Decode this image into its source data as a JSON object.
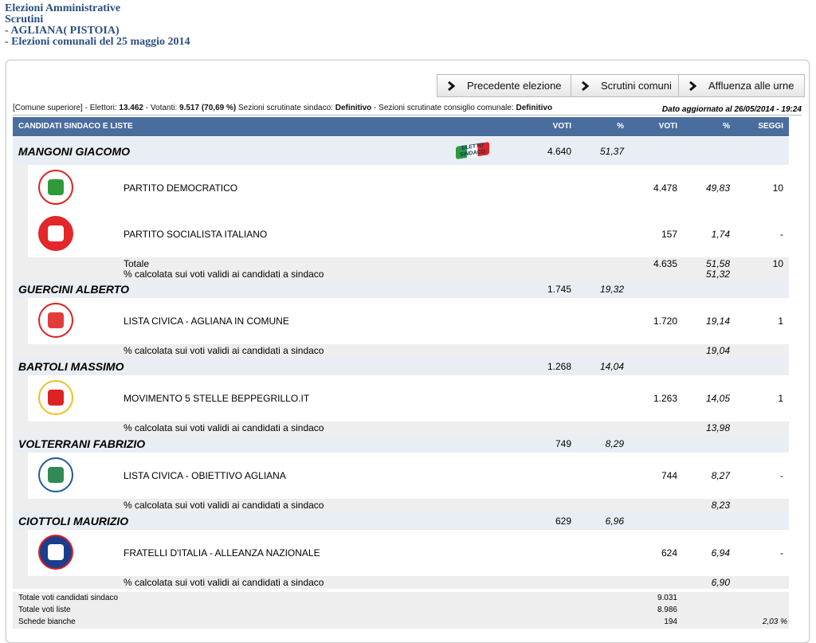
{
  "header": {
    "lines": [
      "Elezioni Amministrative",
      "Scrutini",
      "- AGLIANA( PISTOIA)",
      "- Elezioni comunali del 25 maggio 2014"
    ]
  },
  "buttons": [
    "Precedente elezione",
    "Scrutini comuni",
    "Affluenza alle urne"
  ],
  "info": {
    "segments": [
      {
        "label": "[Comune superiore] - Elettori:",
        "value": "13.462"
      },
      {
        "label": "- Votanti:",
        "value": "9.517 (70,69 %)"
      },
      {
        "label": "Sezioni scrutinate sindaco:",
        "value": "Definitivo"
      },
      {
        "label": "- Sezioni scrutinate consiglio comunale:",
        "value": "Definitivo"
      }
    ],
    "updated": "Dato aggiornato al 26/05/2014 - 19:24"
  },
  "table": {
    "columns": [
      "CANDIDATI SINDACO E LISTE",
      "VOTI",
      "%",
      "VOTI",
      "%",
      "SEGGI"
    ],
    "candidates": [
      {
        "name": "MANGONI GIACOMO",
        "badge": "ELETTO SINDACO",
        "votes": "4.640",
        "percent": "51,37",
        "lists": [
          {
            "name": "PARTITO DEMOCRATICO",
            "votes": "4.478",
            "percent": "49,83",
            "seats": "10"
          },
          {
            "name": "PARTITO SOCIALISTA ITALIANO",
            "votes": "157",
            "percent": "1,74",
            "seats": "-"
          }
        ],
        "total": {
          "label": "Totale",
          "votes": "4.635",
          "percent": "51,58",
          "seats": "10"
        },
        "note": {
          "label": "% calcolata sui voti validi ai candidati a sindaco",
          "percent": "51,32"
        }
      },
      {
        "name": "GUERCINI ALBERTO",
        "votes": "1.745",
        "percent": "19,32",
        "lists": [
          {
            "name": "LISTA CIVICA - AGLIANA IN COMUNE",
            "votes": "1.720",
            "percent": "19,14",
            "seats": "1"
          }
        ],
        "note": {
          "label": "% calcolata sui voti validi ai candidati a sindaco",
          "percent": "19,04"
        }
      },
      {
        "name": "BARTOLI MASSIMO",
        "votes": "1.268",
        "percent": "14,04",
        "lists": [
          {
            "name": "MOVIMENTO 5 STELLE BEPPEGRILLO.IT",
            "votes": "1.263",
            "percent": "14,05",
            "seats": "1"
          }
        ],
        "note": {
          "label": "% calcolata sui voti validi ai candidati a sindaco",
          "percent": "13,98"
        }
      },
      {
        "name": "VOLTERRANI FABRIZIO",
        "votes": "749",
        "percent": "8,29",
        "lists": [
          {
            "name": "LISTA CIVICA - OBIETTIVO AGLIANA",
            "votes": "744",
            "percent": "8,27",
            "seats": "-"
          }
        ],
        "note": {
          "label": "% calcolata sui voti validi ai candidati a sindaco",
          "percent": "8,23"
        }
      },
      {
        "name": "CIOTTOLI MAURIZIO",
        "votes": "629",
        "percent": "6,96",
        "lists": [
          {
            "name": "FRATELLI D'ITALIA - ALLEANZA NAZIONALE",
            "votes": "624",
            "percent": "6,94",
            "seats": "-"
          }
        ],
        "note": {
          "label": "% calcolata sui voti validi ai candidati a sindaco",
          "percent": "6,90"
        }
      }
    ],
    "footer": [
      {
        "label": "Totale voti candidati sindaco",
        "value": "9.031"
      },
      {
        "label": "Totale voti liste",
        "value": "8.986"
      },
      {
        "label": "Schede bianche",
        "value": "194",
        "percent": "2,03 %"
      }
    ]
  }
}
